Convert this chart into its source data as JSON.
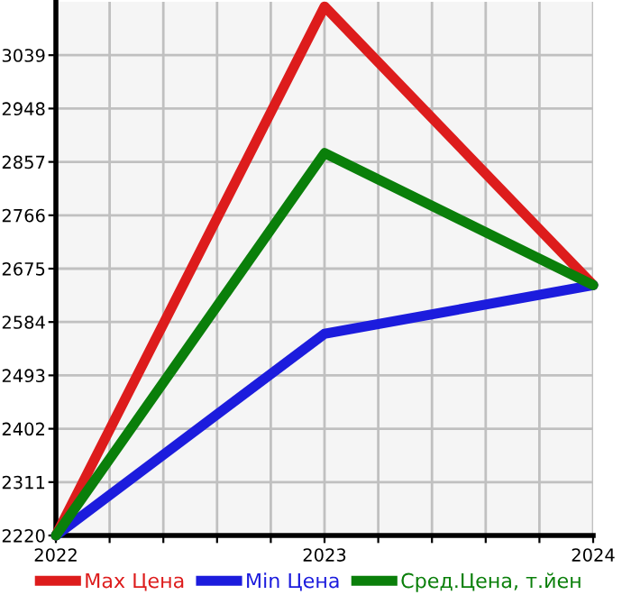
{
  "chart_data": {
    "type": "line",
    "x": [
      2022,
      2023,
      2024
    ],
    "series": [
      {
        "name": "Max Цена",
        "color": "#dd1c1c",
        "values": [
          2220,
          3122,
          2647
        ]
      },
      {
        "name": "Min Цена",
        "color": "#1c1cdd",
        "values": [
          2220,
          2564,
          2647
        ]
      },
      {
        "name": "Сред.Цена, т.йен",
        "color": "#0a7f0a",
        "values": [
          2220,
          2872,
          2647
        ]
      }
    ],
    "xlim": [
      2022,
      2024
    ],
    "xticks": [
      2022,
      {
        "value": 2022.2,
        "label": null
      },
      {
        "value": 2022.4,
        "label": null
      },
      {
        "value": 2022.6,
        "label": null
      },
      {
        "value": 2022.8,
        "label": null
      },
      2023,
      {
        "value": 2023.2,
        "label": null
      },
      {
        "value": 2023.4,
        "label": null
      },
      {
        "value": 2023.6,
        "label": null
      },
      {
        "value": 2023.8,
        "label": null
      },
      2024
    ],
    "ylim": [
      2220,
      3130
    ],
    "yticks": [
      2220,
      2311,
      2402,
      2493,
      2584,
      2675,
      2766,
      2857,
      2948,
      3039
    ],
    "grid": true,
    "legend": "bottom",
    "marker": "none",
    "line_style": "solid"
  }
}
